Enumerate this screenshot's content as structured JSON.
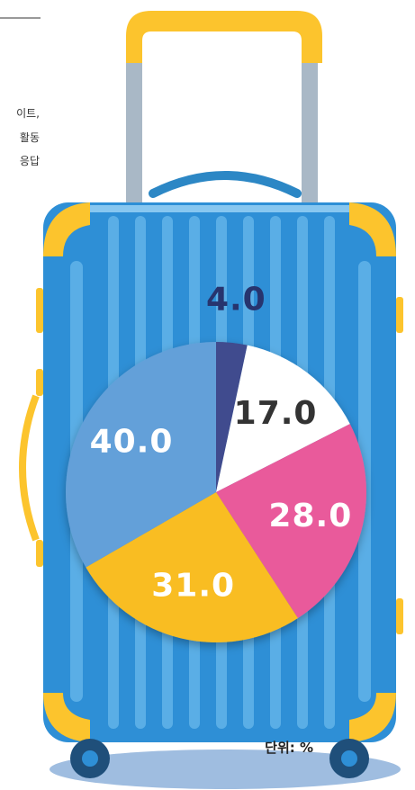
{
  "chart_data": {
    "type": "pie",
    "values": [
      4,
      17,
      28,
      31,
      40
    ],
    "value_labels": [
      "4.0",
      "17.0",
      "28.0",
      "31.0",
      "40.0"
    ],
    "colors": [
      "#3f4b8e",
      "#ffffff",
      "#e95a9b",
      "#f9bd22",
      "#64a0d9"
    ],
    "label_colors": [
      "#27346e",
      "#333333",
      "#ffffff",
      "#ffffff",
      "#ffffff"
    ],
    "unit_note": "단위: %",
    "annotations": [
      "이트,",
      "활동",
      "응답"
    ]
  }
}
